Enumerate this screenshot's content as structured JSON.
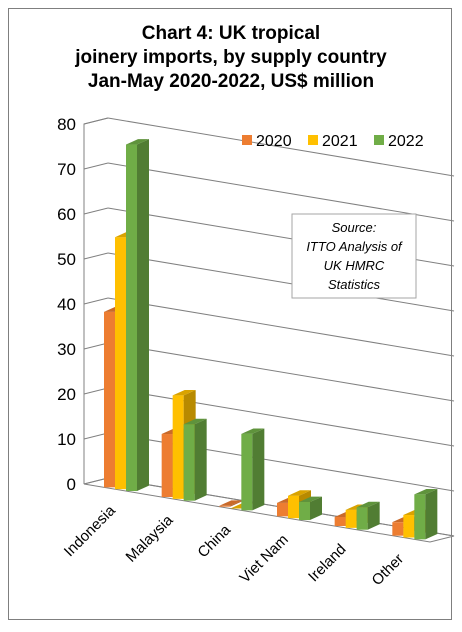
{
  "chart_data": {
    "type": "bar",
    "title_lines": [
      "Chart 4: UK tropical",
      "joinery imports, by supply country",
      "Jan-May 2020-2022, US$ million"
    ],
    "categories": [
      "Indonesia",
      "Malaysia",
      "China",
      "Viet Nam",
      "Ireland",
      "Other"
    ],
    "series": [
      {
        "name": "2020",
        "color": "#ed7d31",
        "values": [
          39,
          14,
          0.2,
          3,
          2,
          3
        ]
      },
      {
        "name": "2021",
        "color": "#ffc000",
        "values": [
          56,
          23,
          0,
          5,
          4,
          5
        ]
      },
      {
        "name": "2022",
        "color": "#70ad47",
        "values": [
          77,
          17,
          17,
          4,
          5,
          10
        ]
      }
    ],
    "yticks": [
      "0",
      "10",
      "20",
      "30",
      "40",
      "50",
      "60",
      "70",
      "80"
    ],
    "ylim": [
      0,
      80
    ],
    "grid": true,
    "legend_position": "top-right",
    "annotation": [
      "Source:",
      "ITTO Analysis of",
      "UK HMRC",
      "Statistics"
    ]
  }
}
